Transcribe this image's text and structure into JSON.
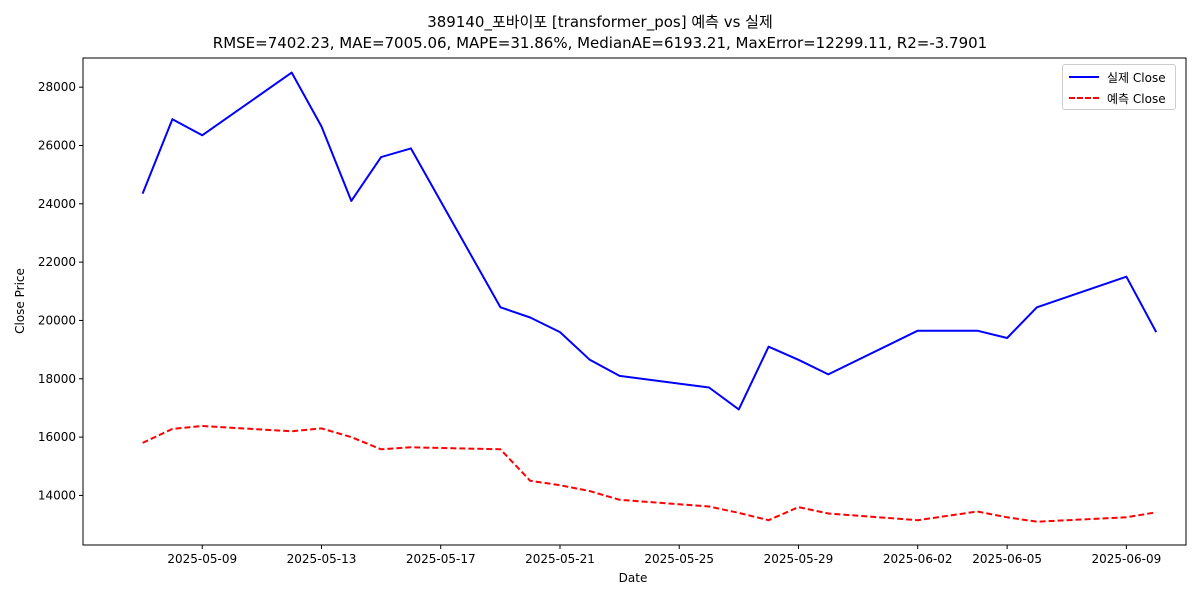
{
  "chart_data": {
    "type": "line",
    "title": "389140_포바이포 [transformer_pos] 예측 vs 실제",
    "subtitle": "RMSE=7402.23, MAE=7005.06, MAPE=31.86%, MedianAE=6193.21, MaxError=12299.11, R2=-3.7901",
    "xlabel": "Date",
    "ylabel": "Close Price",
    "x_ticks": [
      "2025-05-09",
      "2025-05-13",
      "2025-05-17",
      "2025-05-21",
      "2025-05-25",
      "2025-05-29",
      "2025-06-02",
      "2025-06-05",
      "2025-06-09"
    ],
    "y_ticks": [
      14000,
      16000,
      18000,
      20000,
      22000,
      24000,
      26000,
      28000
    ],
    "xlim": [
      "2025-05-05",
      "2025-06-11"
    ],
    "ylim": [
      12300,
      29000
    ],
    "grid": false,
    "legend_position": "top-right",
    "x": [
      "2025-05-07",
      "2025-05-08",
      "2025-05-09",
      "2025-05-12",
      "2025-05-13",
      "2025-05-14",
      "2025-05-15",
      "2025-05-16",
      "2025-05-19",
      "2025-05-20",
      "2025-05-21",
      "2025-05-22",
      "2025-05-23",
      "2025-05-26",
      "2025-05-27",
      "2025-05-28",
      "2025-05-29",
      "2025-05-30",
      "2025-06-02",
      "2025-06-04",
      "2025-06-05",
      "2025-06-06",
      "2025-06-09",
      "2025-06-10"
    ],
    "series": [
      {
        "name": "실제 Close",
        "color": "#0000ff",
        "style": "solid",
        "values": [
          24350,
          26900,
          26350,
          28500,
          26650,
          24100,
          25600,
          25900,
          20450,
          20100,
          19600,
          18650,
          18100,
          17700,
          16950,
          19100,
          18650,
          18150,
          19650,
          19650,
          19400,
          20450,
          21500,
          19600
        ]
      },
      {
        "name": "예측 Close",
        "color": "#ff0000",
        "style": "dashed",
        "values": [
          15800,
          16280,
          16380,
          16200,
          16300,
          16000,
          15580,
          15650,
          15580,
          14500,
          14350,
          14150,
          13850,
          13620,
          13400,
          13150,
          13600,
          13380,
          13150,
          13450,
          13250,
          13100,
          13250,
          13420
        ]
      }
    ]
  }
}
